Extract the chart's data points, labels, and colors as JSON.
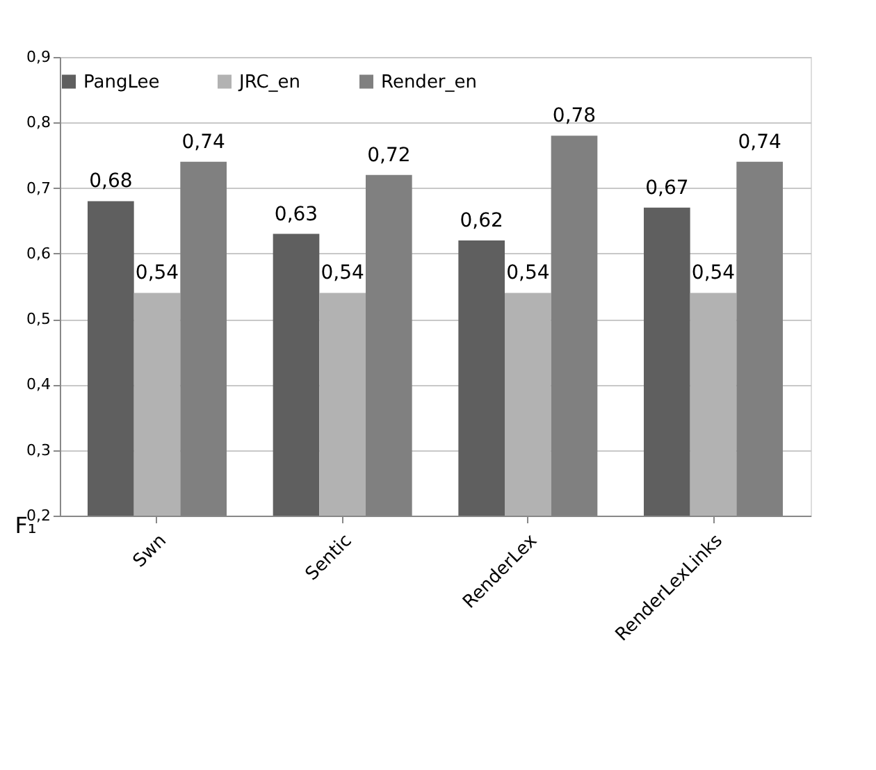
{
  "chart_data": {
    "type": "bar",
    "ylabel": "F₁",
    "categories": [
      "Swn",
      "Sentic",
      "RenderLex",
      "RenderLexLinks"
    ],
    "series": [
      {
        "name": "PangLee",
        "color": "#5f5f5f",
        "values": [
          0.68,
          0.63,
          0.62,
          0.67
        ],
        "value_labels": [
          "0,68",
          "0,63",
          "0,62",
          "0,67"
        ]
      },
      {
        "name": "JRC_en",
        "color": "#b2b2b2",
        "values": [
          0.54,
          0.54,
          0.54,
          0.54
        ],
        "value_labels": [
          "0,54",
          "0,54",
          "0,54",
          "0,54"
        ]
      },
      {
        "name": "Render_en",
        "color": "#808080",
        "values": [
          0.74,
          0.72,
          0.78,
          0.74
        ],
        "value_labels": [
          "0,74",
          "0,72",
          "0,78",
          "0,74"
        ]
      }
    ],
    "ylim": [
      0.2,
      0.9
    ],
    "yticks": [
      {
        "value": 0.2,
        "label": "0,2"
      },
      {
        "value": 0.3,
        "label": "0,3"
      },
      {
        "value": 0.4,
        "label": "0,4"
      },
      {
        "value": 0.5,
        "label": "0,5"
      },
      {
        "value": 0.6,
        "label": "0,6"
      },
      {
        "value": 0.7,
        "label": "0,7"
      },
      {
        "value": 0.8,
        "label": "0,8"
      },
      {
        "value": 0.9,
        "label": "0,9"
      }
    ],
    "grid": "y",
    "legend": "top"
  }
}
